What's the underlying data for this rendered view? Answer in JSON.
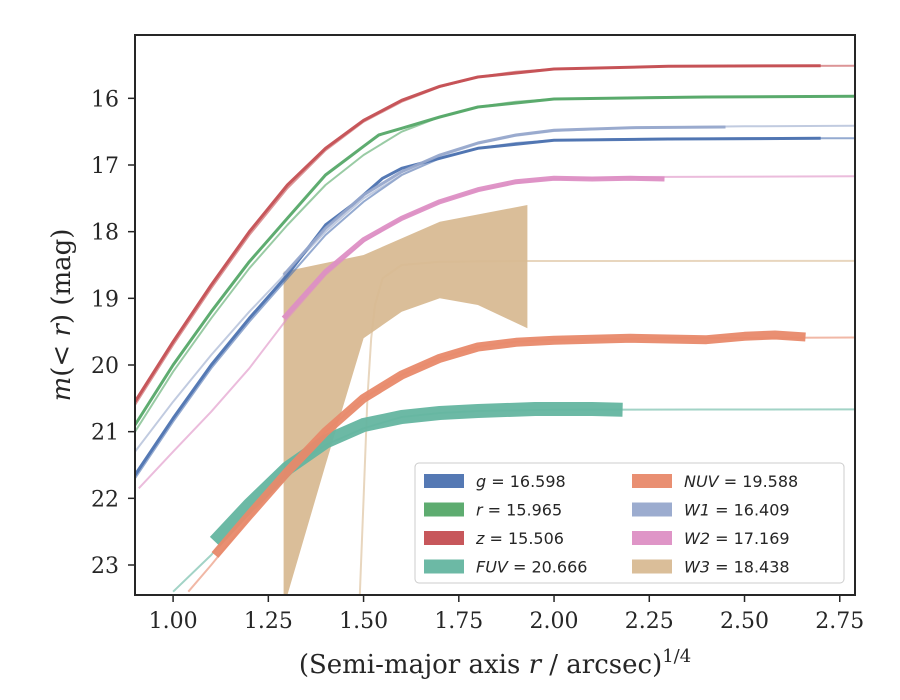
{
  "chart_data": {
    "type": "line",
    "xlabel": "(Semi-major axis r / arcsec)^{1/4}",
    "ylabel": "m(< r) (mag)",
    "xlim": [
      0.9,
      2.79
    ],
    "ylim": [
      23.45,
      15.05
    ],
    "y_inverted": true,
    "grid": false,
    "legend_position": "lower-right",
    "x_ticks": [
      "1.00",
      "1.25",
      "1.50",
      "1.75",
      "2.00",
      "2.25",
      "2.50",
      "2.75"
    ],
    "x_tick_values": [
      1.0,
      1.25,
      1.5,
      1.75,
      2.0,
      2.25,
      2.5,
      2.75
    ],
    "y_ticks": [
      "16",
      "17",
      "18",
      "19",
      "20",
      "21",
      "22",
      "23"
    ],
    "y_tick_values": [
      16,
      17,
      18,
      19,
      20,
      21,
      22,
      23
    ],
    "series": [
      {
        "name": "g = 16.598",
        "band": "g",
        "total": "16.598",
        "color": "#4c72b0",
        "model": [
          [
            0.9,
            21.7
          ],
          [
            1.0,
            20.85
          ],
          [
            1.1,
            20.05
          ],
          [
            1.2,
            19.35
          ],
          [
            1.3,
            18.7
          ],
          [
            1.4,
            18.05
          ],
          [
            1.5,
            17.55
          ],
          [
            1.6,
            17.15
          ],
          [
            1.7,
            16.9
          ],
          [
            1.8,
            16.75
          ],
          [
            1.9,
            16.67
          ],
          [
            2.0,
            16.63
          ],
          [
            2.2,
            16.61
          ],
          [
            2.5,
            16.6
          ],
          [
            2.79,
            16.6
          ]
        ],
        "data": [
          [
            0.9,
            21.65
          ],
          [
            1.0,
            20.8
          ],
          [
            1.1,
            20.0
          ],
          [
            1.2,
            19.3
          ],
          [
            1.3,
            18.65
          ],
          [
            1.4,
            17.9
          ],
          [
            1.47,
            17.6
          ],
          [
            1.55,
            17.2
          ],
          [
            1.6,
            17.05
          ],
          [
            1.7,
            16.9
          ],
          [
            1.8,
            16.75
          ],
          [
            2.0,
            16.63
          ],
          [
            2.3,
            16.61
          ],
          [
            2.7,
            16.6
          ]
        ],
        "data_width": 3
      },
      {
        "name": "r = 15.965",
        "band": "r",
        "total": "15.965",
        "color": "#55a868",
        "model": [
          [
            0.9,
            21.0
          ],
          [
            1.0,
            20.1
          ],
          [
            1.1,
            19.3
          ],
          [
            1.2,
            18.55
          ],
          [
            1.3,
            17.9
          ],
          [
            1.4,
            17.3
          ],
          [
            1.5,
            16.85
          ],
          [
            1.6,
            16.5
          ],
          [
            1.7,
            16.28
          ],
          [
            1.8,
            16.13
          ],
          [
            1.9,
            16.05
          ],
          [
            2.0,
            16.01
          ],
          [
            2.3,
            15.98
          ],
          [
            2.79,
            15.97
          ]
        ],
        "data": [
          [
            0.9,
            20.9
          ],
          [
            1.0,
            20.0
          ],
          [
            1.1,
            19.2
          ],
          [
            1.2,
            18.45
          ],
          [
            1.3,
            17.8
          ],
          [
            1.4,
            17.15
          ],
          [
            1.47,
            16.85
          ],
          [
            1.5,
            16.72
          ],
          [
            1.54,
            16.55
          ],
          [
            1.6,
            16.45
          ],
          [
            1.7,
            16.28
          ],
          [
            1.8,
            16.13
          ],
          [
            2.0,
            16.01
          ],
          [
            2.4,
            15.98
          ],
          [
            2.79,
            15.97
          ]
        ],
        "data_width": 3
      },
      {
        "name": "z = 15.506",
        "band": "z",
        "total": "15.506",
        "color": "#c44e52",
        "model": [
          [
            0.9,
            20.6
          ],
          [
            1.0,
            19.7
          ],
          [
            1.1,
            18.85
          ],
          [
            1.2,
            18.05
          ],
          [
            1.3,
            17.35
          ],
          [
            1.4,
            16.78
          ],
          [
            1.5,
            16.35
          ],
          [
            1.6,
            16.05
          ],
          [
            1.7,
            15.83
          ],
          [
            1.8,
            15.68
          ],
          [
            1.9,
            15.6
          ],
          [
            2.0,
            15.56
          ],
          [
            2.3,
            15.52
          ],
          [
            2.79,
            15.51
          ]
        ],
        "data": [
          [
            0.9,
            20.55
          ],
          [
            1.0,
            19.65
          ],
          [
            1.1,
            18.8
          ],
          [
            1.2,
            18.0
          ],
          [
            1.3,
            17.3
          ],
          [
            1.4,
            16.75
          ],
          [
            1.5,
            16.33
          ],
          [
            1.6,
            16.03
          ],
          [
            1.7,
            15.82
          ],
          [
            1.8,
            15.68
          ],
          [
            2.0,
            15.56
          ],
          [
            2.3,
            15.52
          ],
          [
            2.7,
            15.51
          ]
        ],
        "data_width": 3
      },
      {
        "name": "FUV = 20.666",
        "band": "FUV",
        "total": "20.666",
        "color": "#64b5a0",
        "model": [
          [
            1.0,
            23.4
          ],
          [
            1.1,
            22.85
          ],
          [
            1.2,
            22.2
          ],
          [
            1.3,
            21.6
          ],
          [
            1.4,
            21.2
          ],
          [
            1.5,
            20.95
          ],
          [
            1.6,
            20.78
          ],
          [
            1.7,
            20.72
          ],
          [
            1.8,
            20.69
          ],
          [
            2.0,
            20.67
          ],
          [
            2.4,
            20.667
          ],
          [
            2.79,
            20.666
          ]
        ],
        "data": [
          [
            1.11,
            22.65
          ],
          [
            1.2,
            22.1
          ],
          [
            1.3,
            21.55
          ],
          [
            1.4,
            21.15
          ],
          [
            1.5,
            20.9
          ],
          [
            1.6,
            20.78
          ],
          [
            1.7,
            20.72
          ],
          [
            1.8,
            20.69
          ],
          [
            1.95,
            20.66
          ],
          [
            2.1,
            20.66
          ],
          [
            2.18,
            20.67
          ]
        ],
        "data_width": 14
      },
      {
        "name": "NUV = 19.588",
        "band": "NUV",
        "total": "19.588",
        "color": "#e8896a",
        "model": [
          [
            1.04,
            23.4
          ],
          [
            1.1,
            23.0
          ],
          [
            1.2,
            22.3
          ],
          [
            1.3,
            21.6
          ],
          [
            1.4,
            21.0
          ],
          [
            1.5,
            20.5
          ],
          [
            1.6,
            20.15
          ],
          [
            1.7,
            19.9
          ],
          [
            1.8,
            19.73
          ],
          [
            1.9,
            19.65
          ],
          [
            2.0,
            19.62
          ],
          [
            2.3,
            19.6
          ],
          [
            2.79,
            19.588
          ]
        ],
        "data": [
          [
            1.11,
            22.85
          ],
          [
            1.2,
            22.25
          ],
          [
            1.3,
            21.6
          ],
          [
            1.4,
            21.0
          ],
          [
            1.5,
            20.5
          ],
          [
            1.6,
            20.15
          ],
          [
            1.7,
            19.9
          ],
          [
            1.8,
            19.73
          ],
          [
            1.9,
            19.66
          ],
          [
            2.0,
            19.63
          ],
          [
            2.2,
            19.6
          ],
          [
            2.4,
            19.62
          ],
          [
            2.5,
            19.57
          ],
          [
            2.58,
            19.55
          ],
          [
            2.66,
            19.58
          ]
        ],
        "data_width": 9
      },
      {
        "name": "W1 = 16.409",
        "band": "W1",
        "total": "16.409",
        "color": "#97a8cc",
        "model": [
          [
            0.9,
            21.3
          ],
          [
            1.0,
            20.55
          ],
          [
            1.1,
            19.85
          ],
          [
            1.2,
            19.2
          ],
          [
            1.3,
            18.6
          ],
          [
            1.4,
            18.0
          ],
          [
            1.5,
            17.5
          ],
          [
            1.6,
            17.15
          ],
          [
            1.7,
            16.87
          ],
          [
            1.8,
            16.68
          ],
          [
            1.9,
            16.56
          ],
          [
            2.0,
            16.49
          ],
          [
            2.2,
            16.44
          ],
          [
            2.5,
            16.42
          ],
          [
            2.79,
            16.41
          ]
        ],
        "data": [
          [
            1.29,
            18.65
          ],
          [
            1.4,
            17.95
          ],
          [
            1.5,
            17.45
          ],
          [
            1.6,
            17.1
          ],
          [
            1.7,
            16.85
          ],
          [
            1.8,
            16.67
          ],
          [
            1.9,
            16.55
          ],
          [
            2.0,
            16.48
          ],
          [
            2.2,
            16.44
          ],
          [
            2.45,
            16.43
          ]
        ],
        "data_width": 3
      },
      {
        "name": "W2 = 17.169",
        "band": "W2",
        "total": "17.169",
        "color": "#dd8fc4",
        "model": [
          [
            0.91,
            21.85
          ],
          [
            1.0,
            21.3
          ],
          [
            1.1,
            20.7
          ],
          [
            1.2,
            20.05
          ],
          [
            1.3,
            19.3
          ],
          [
            1.4,
            18.65
          ],
          [
            1.5,
            18.15
          ],
          [
            1.6,
            17.8
          ],
          [
            1.7,
            17.55
          ],
          [
            1.8,
            17.38
          ],
          [
            1.9,
            17.27
          ],
          [
            2.0,
            17.21
          ],
          [
            2.2,
            17.18
          ],
          [
            2.79,
            17.169
          ]
        ],
        "data": [
          [
            1.29,
            19.3
          ],
          [
            1.4,
            18.6
          ],
          [
            1.5,
            18.12
          ],
          [
            1.6,
            17.8
          ],
          [
            1.7,
            17.55
          ],
          [
            1.8,
            17.37
          ],
          [
            1.9,
            17.25
          ],
          [
            2.0,
            17.2
          ],
          [
            2.1,
            17.21
          ],
          [
            2.2,
            17.2
          ],
          [
            2.29,
            17.21
          ]
        ],
        "data_width": 5
      },
      {
        "name": "W3 = 18.438",
        "band": "W3",
        "total": "18.438",
        "color": "#d8bb93",
        "model": [
          [
            1.49,
            23.45
          ],
          [
            1.5,
            22.0
          ],
          [
            1.51,
            20.5
          ],
          [
            1.52,
            19.6
          ],
          [
            1.53,
            19.1
          ],
          [
            1.55,
            18.7
          ],
          [
            1.6,
            18.5
          ],
          [
            1.7,
            18.45
          ],
          [
            1.9,
            18.44
          ],
          [
            2.79,
            18.438
          ]
        ],
        "band_upper": [
          [
            1.29,
            18.6
          ],
          [
            1.5,
            18.35
          ],
          [
            1.7,
            17.85
          ],
          [
            1.93,
            17.6
          ]
        ],
        "band_lower": [
          [
            1.29,
            23.45
          ],
          [
            1.3,
            23.45
          ],
          [
            1.4,
            21.5
          ],
          [
            1.5,
            19.6
          ],
          [
            1.6,
            19.2
          ],
          [
            1.7,
            19.0
          ],
          [
            1.8,
            19.1
          ],
          [
            1.93,
            19.45
          ]
        ]
      }
    ]
  }
}
